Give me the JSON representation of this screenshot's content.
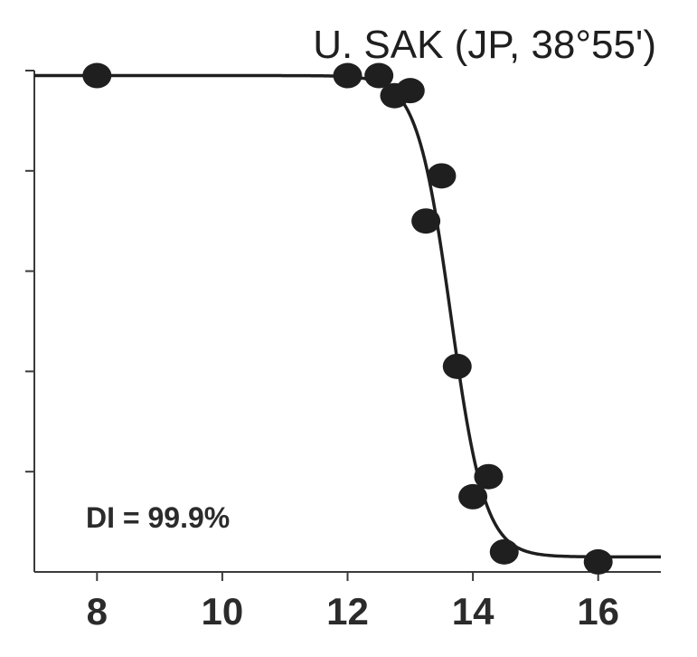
{
  "chart_data": {
    "type": "scatter",
    "title": "U. SAK (JP, 38°55')",
    "xlabel": "",
    "ylabel": "",
    "xlim": [
      7,
      17
    ],
    "ylim": [
      0,
      1
    ],
    "x_ticks": [
      8,
      10,
      12,
      14,
      16
    ],
    "x_tick_labels": [
      "8",
      "10",
      "12",
      "14",
      "16"
    ],
    "y_ticks": [
      0.2,
      0.4,
      0.6,
      0.8,
      1.0
    ],
    "y_tick_labels": [
      "",
      "",
      "",
      "",
      ""
    ],
    "grid": false,
    "annotation": "DI = 99.9%",
    "series": [
      {
        "points": [
          {
            "x": 8.0,
            "y": 0.99
          },
          {
            "x": 12.0,
            "y": 0.99
          },
          {
            "x": 12.5,
            "y": 0.99
          },
          {
            "x": 12.75,
            "y": 0.95
          },
          {
            "x": 13.0,
            "y": 0.96
          },
          {
            "x": 13.5,
            "y": 0.79
          },
          {
            "x": 13.25,
            "y": 0.7
          },
          {
            "x": 13.75,
            "y": 0.41
          },
          {
            "x": 14.25,
            "y": 0.19
          },
          {
            "x": 14.0,
            "y": 0.15
          },
          {
            "x": 14.5,
            "y": 0.04
          },
          {
            "x": 16.0,
            "y": 0.02
          }
        ]
      }
    ],
    "fit_curve": {
      "type": "logistic",
      "upper": 0.99,
      "lower": 0.03,
      "midpoint": 13.65,
      "slope": 3.7
    },
    "colors": {
      "points": "#1f1f1f",
      "curve": "#1f1f1f",
      "axes": "#3a3a3a"
    }
  }
}
